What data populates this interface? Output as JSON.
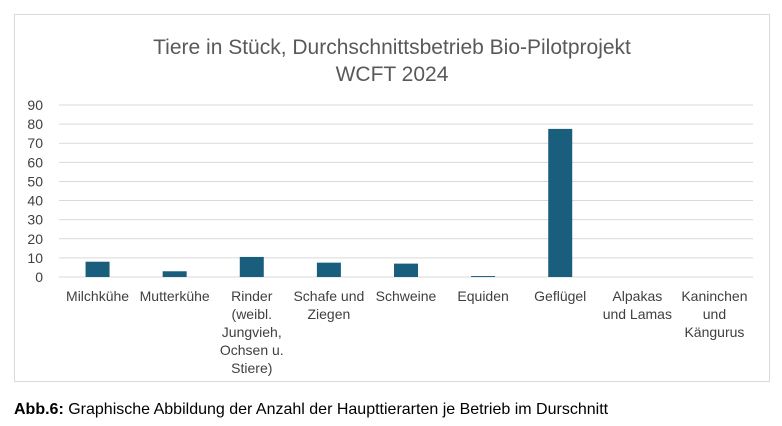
{
  "caption": {
    "label": "Abb.6:",
    "text": " Graphische Abbildung der Anzahl der Haupttierarten je Betrieb im Durschnitt"
  },
  "chart_data": {
    "type": "bar",
    "title_lines": [
      "Tiere in Stück, Durchschnittsbetrieb Bio-Pilotprojekt",
      "WCFT 2024"
    ],
    "categories": [
      [
        "Milchkühe"
      ],
      [
        "Mutterkühe"
      ],
      [
        "Rinder",
        "(weibl.",
        "Jungvieh,",
        "Ochsen u.",
        "Stiere)"
      ],
      [
        "Schafe und",
        "Ziegen"
      ],
      [
        "Schweine"
      ],
      [
        "Equiden"
      ],
      [
        "Geflügel"
      ],
      [
        "Alpakas",
        "und Lamas"
      ],
      [
        "Kaninchen",
        "und",
        "Kängurus"
      ]
    ],
    "values": [
      8,
      3,
      10.5,
      7.5,
      7,
      0.5,
      77.5,
      0,
      0
    ],
    "ylim": [
      0,
      90
    ],
    "yticks": [
      "0",
      "10",
      "20",
      "30",
      "40",
      "50",
      "60",
      "70",
      "80",
      "90"
    ],
    "grid": true,
    "bar_color": "#1a5e7e",
    "grid_color": "#d9d9d9",
    "text_color": "#595959"
  }
}
